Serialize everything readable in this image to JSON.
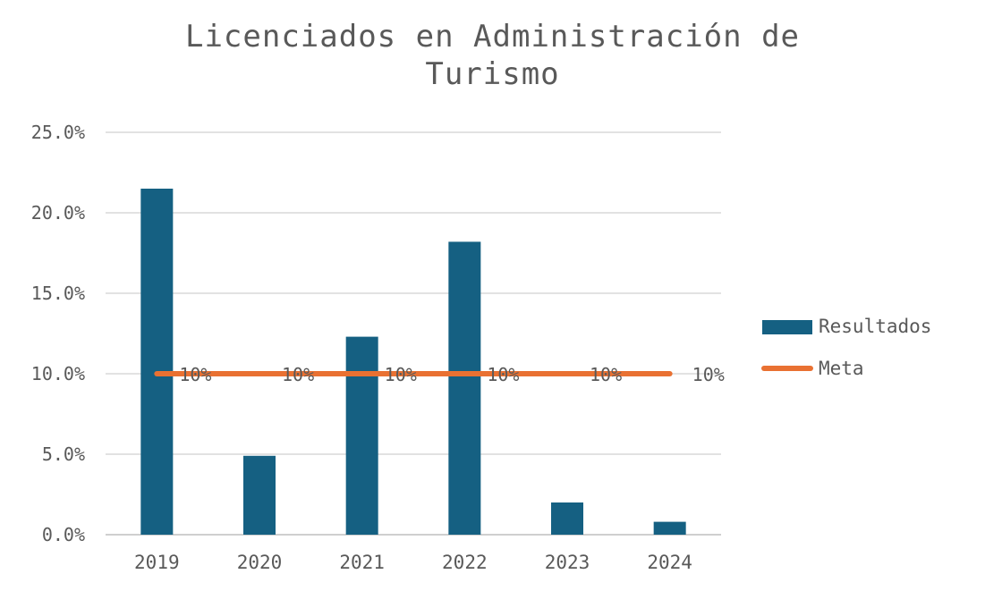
{
  "chart_data": {
    "type": "bar",
    "title": "Licenciados en Administración de Turismo",
    "categories": [
      "2019",
      "2020",
      "2021",
      "2022",
      "2023",
      "2024"
    ],
    "series": [
      {
        "name": "Resultados",
        "type": "bar",
        "color": "#156082",
        "values": [
          21.5,
          4.9,
          12.3,
          18.2,
          2.0,
          0.8
        ]
      },
      {
        "name": "Meta",
        "type": "line",
        "color": "#E97132",
        "values": [
          10,
          10,
          10,
          10,
          10,
          10
        ]
      }
    ],
    "data_labels": [
      "10%",
      "10%",
      "10%",
      "10%",
      "10%",
      "10%"
    ],
    "y_ticks": [
      "0.0%",
      "5.0%",
      "10.0%",
      "15.0%",
      "20.0%",
      "25.0%"
    ],
    "ylim": [
      0,
      25
    ],
    "y_unit": "%",
    "grid": true,
    "legend_position": "right",
    "xlabel": "",
    "ylabel": ""
  }
}
